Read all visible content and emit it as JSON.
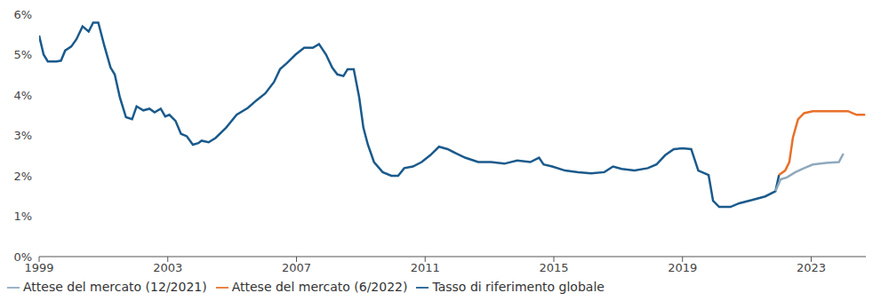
{
  "chart_data": {
    "type": "line",
    "xlim": [
      1999,
      2024.7
    ],
    "xticks": [
      1999,
      2003,
      2007,
      2011,
      2015,
      2019,
      2023
    ],
    "ylim": [
      0,
      6
    ],
    "yticks": [
      {
        "value": 0,
        "label": "0%"
      },
      {
        "value": 1,
        "label": "1%"
      },
      {
        "value": 2,
        "label": "2%"
      },
      {
        "value": 3,
        "label": "3%"
      },
      {
        "value": 4,
        "label": "4%"
      },
      {
        "value": 5,
        "label": "5%"
      },
      {
        "value": 6,
        "label": "6%"
      }
    ],
    "grid": false,
    "legend": "bottom-left",
    "marker": "none",
    "series": [
      {
        "name": "Tasso di riferimento globale",
        "color": "#1a5a8c",
        "x": [
          1999.0,
          1999.14,
          1999.27,
          1999.54,
          1999.68,
          1999.81,
          2000.0,
          2000.16,
          2000.35,
          2000.54,
          2000.68,
          2000.84,
          2001.03,
          2001.22,
          2001.35,
          2001.51,
          2001.7,
          2001.89,
          2002.03,
          2002.24,
          2002.43,
          2002.59,
          2002.78,
          2002.92,
          2003.05,
          2003.24,
          2003.41,
          2003.59,
          2003.78,
          2003.95,
          2004.05,
          2004.27,
          2004.49,
          2004.81,
          2005.14,
          2005.49,
          2005.76,
          2006.03,
          2006.3,
          2006.49,
          2006.7,
          2006.97,
          2007.24,
          2007.51,
          2007.7,
          2007.92,
          2008.11,
          2008.27,
          2008.46,
          2008.59,
          2008.78,
          2008.95,
          2009.08,
          2009.22,
          2009.41,
          2009.68,
          2009.95,
          2010.16,
          2010.35,
          2010.62,
          2010.89,
          2011.16,
          2011.43,
          2011.7,
          2011.97,
          2012.24,
          2012.65,
          2013.05,
          2013.46,
          2013.86,
          2014.27,
          2014.54,
          2014.68,
          2014.95,
          2015.35,
          2015.76,
          2016.16,
          2016.57,
          2016.84,
          2017.11,
          2017.51,
          2017.92,
          2018.19,
          2018.46,
          2018.73,
          2019.0,
          2019.27,
          2019.49,
          2019.81,
          2019.95,
          2020.14,
          2020.49,
          2020.76,
          2021.16,
          2021.57,
          2021.89,
          2022.0
        ],
        "values": [
          5.47,
          5.0,
          4.83,
          4.83,
          4.85,
          5.1,
          5.2,
          5.38,
          5.7,
          5.57,
          5.79,
          5.79,
          5.21,
          4.68,
          4.51,
          3.94,
          3.45,
          3.4,
          3.72,
          3.62,
          3.66,
          3.57,
          3.66,
          3.47,
          3.51,
          3.36,
          3.04,
          2.98,
          2.77,
          2.81,
          2.87,
          2.83,
          2.94,
          3.19,
          3.51,
          3.68,
          3.87,
          4.04,
          4.32,
          4.64,
          4.79,
          5.0,
          5.17,
          5.17,
          5.26,
          5.0,
          4.68,
          4.51,
          4.47,
          4.64,
          4.64,
          3.94,
          3.19,
          2.77,
          2.34,
          2.09,
          2.0,
          2.0,
          2.19,
          2.23,
          2.34,
          2.51,
          2.72,
          2.66,
          2.55,
          2.45,
          2.34,
          2.34,
          2.3,
          2.38,
          2.34,
          2.45,
          2.28,
          2.23,
          2.13,
          2.09,
          2.06,
          2.09,
          2.23,
          2.17,
          2.13,
          2.19,
          2.28,
          2.51,
          2.66,
          2.68,
          2.66,
          2.13,
          2.02,
          1.38,
          1.23,
          1.23,
          1.32,
          1.4,
          1.49,
          1.62,
          2.02
        ]
      },
      {
        "name": "Attese del mercato (6/2022)",
        "color": "#e8702a",
        "x": [
          2022.0,
          2022.19,
          2022.32,
          2022.43,
          2022.59,
          2022.78,
          2023.05,
          2023.59,
          2024.14,
          2024.41,
          2024.68
        ],
        "values": [
          2.02,
          2.13,
          2.34,
          2.94,
          3.4,
          3.55,
          3.6,
          3.6,
          3.6,
          3.51,
          3.51
        ]
      },
      {
        "name": "Attese del mercato (12/2021)",
        "color": "#8fa9bd",
        "x": [
          2021.89,
          2022.05,
          2022.24,
          2022.51,
          2022.78,
          2023.05,
          2023.46,
          2023.86,
          2024.0
        ],
        "values": [
          1.62,
          1.91,
          1.96,
          2.09,
          2.19,
          2.28,
          2.32,
          2.34,
          2.55
        ]
      }
    ]
  }
}
